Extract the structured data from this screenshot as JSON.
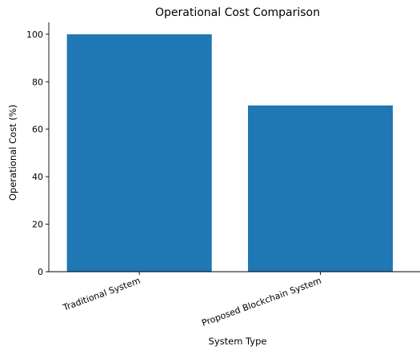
{
  "chart_data": {
    "type": "bar",
    "title": "Operational Cost Comparison",
    "xlabel": "System Type",
    "ylabel": "Operational Cost (%)",
    "categories": [
      "Traditional System",
      "Proposed Blockchain System"
    ],
    "values": [
      100,
      70
    ],
    "ylim": [
      0,
      105
    ],
    "yticks": [
      0,
      20,
      40,
      60,
      80,
      100
    ],
    "bar_color": "#1f77b4",
    "grid": false,
    "xtick_rotation_deg": -20
  }
}
